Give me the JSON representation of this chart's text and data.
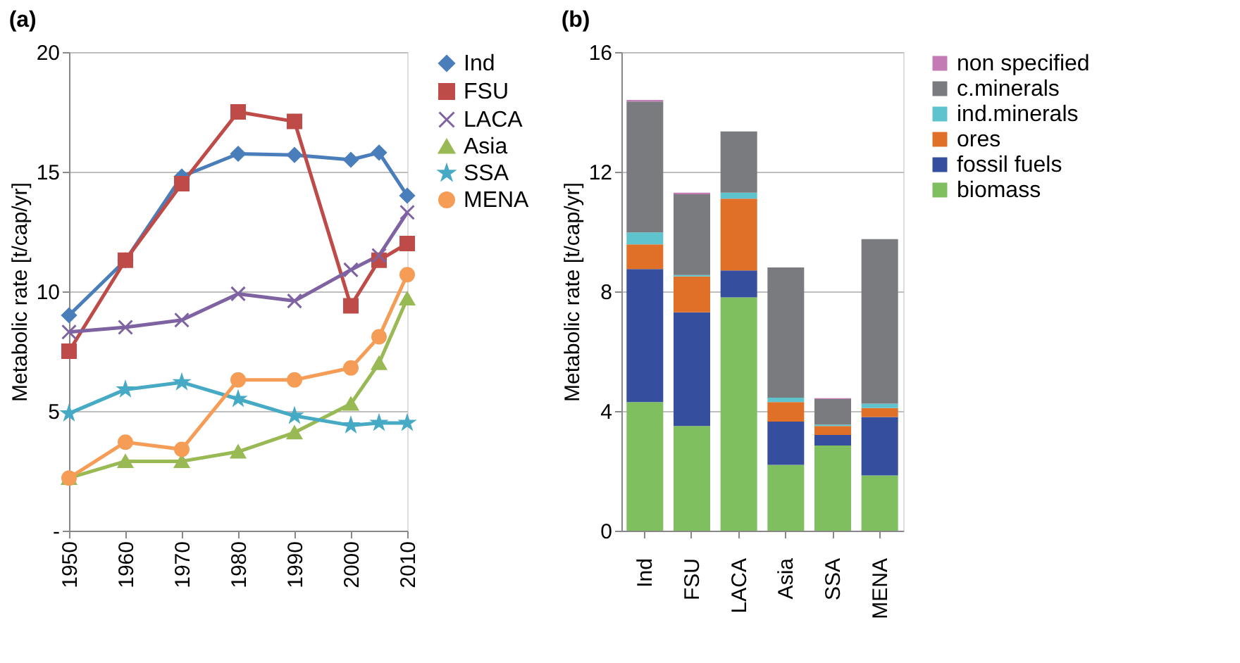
{
  "chart_data": [
    {
      "type": "line",
      "title": "(a)",
      "ylabel": "Metabolic rate [t/cap/yr]",
      "x": [
        1950,
        1960,
        1970,
        1980,
        1990,
        2000,
        2005,
        2010
      ],
      "xlim": [
        1950,
        2010
      ],
      "xticks": [
        1950,
        1960,
        1970,
        1980,
        1990,
        2000,
        2010
      ],
      "ylim": [
        0,
        20
      ],
      "yticks": [
        {
          "value": 0,
          "label": "-"
        },
        5,
        10,
        15,
        20
      ],
      "grid": "y",
      "legend": "right",
      "line_style": "solid",
      "series": [
        {
          "name": "Ind",
          "color": "#4a7ebb",
          "marker": "diamond",
          "values": [
            9.0,
            11.3,
            14.8,
            15.75,
            15.7,
            15.5,
            15.8,
            14.0
          ]
        },
        {
          "name": "FSU",
          "color": "#be4b48",
          "marker": "square",
          "values": [
            7.5,
            11.3,
            14.5,
            17.5,
            17.1,
            9.4,
            11.3,
            12.0
          ]
        },
        {
          "name": "LACA",
          "color": "#7e62a1",
          "marker": "cross",
          "values": [
            8.3,
            8.5,
            8.8,
            9.9,
            9.6,
            10.9,
            11.5,
            13.3
          ]
        },
        {
          "name": "Asia",
          "color": "#98b954",
          "marker": "triangle",
          "values": [
            2.2,
            2.9,
            2.9,
            3.3,
            4.1,
            5.3,
            7.0,
            9.7
          ]
        },
        {
          "name": "SSA",
          "color": "#46aac5",
          "marker": "star",
          "values": [
            4.9,
            5.9,
            6.2,
            5.5,
            4.8,
            4.4,
            4.5,
            4.5
          ]
        },
        {
          "name": "MENA",
          "color": "#f59d56",
          "marker": "circle",
          "values": [
            2.2,
            3.7,
            3.4,
            6.3,
            6.3,
            6.8,
            8.1,
            10.7
          ]
        }
      ]
    },
    {
      "type": "bar",
      "title": "(b)",
      "ylabel": "Metabolic rate [t/cap/yr]",
      "categories": [
        "Ind",
        "FSU",
        "LACA",
        "Asia",
        "SSA",
        "MENA"
      ],
      "stacked": true,
      "ylim": [
        0,
        16
      ],
      "yticks": [
        0,
        4,
        8,
        12,
        16
      ],
      "grid": "y",
      "legend": "right",
      "series": [
        {
          "name": "biomass",
          "color": "#7fbf5f",
          "values": [
            4.3,
            3.5,
            7.8,
            2.2,
            2.85,
            1.85
          ]
        },
        {
          "name": "fossil fuels",
          "color": "#354e9e",
          "values": [
            4.45,
            3.8,
            0.9,
            1.45,
            0.35,
            1.95
          ]
        },
        {
          "name": "ores",
          "color": "#e07028",
          "values": [
            0.82,
            1.2,
            2.4,
            0.65,
            0.3,
            0.3
          ]
        },
        {
          "name": "ind.minerals",
          "color": "#5fc3cd",
          "values": [
            0.4,
            0.05,
            0.2,
            0.15,
            0.05,
            0.15
          ]
        },
        {
          "name": "c.minerals",
          "color": "#7a7b7f",
          "values": [
            4.38,
            2.7,
            2.05,
            4.35,
            0.85,
            5.5
          ]
        },
        {
          "name": "non specified",
          "color": "#c47ab5",
          "values": [
            0.05,
            0.05,
            0.0,
            0.0,
            0.03,
            0.0
          ]
        }
      ]
    }
  ]
}
